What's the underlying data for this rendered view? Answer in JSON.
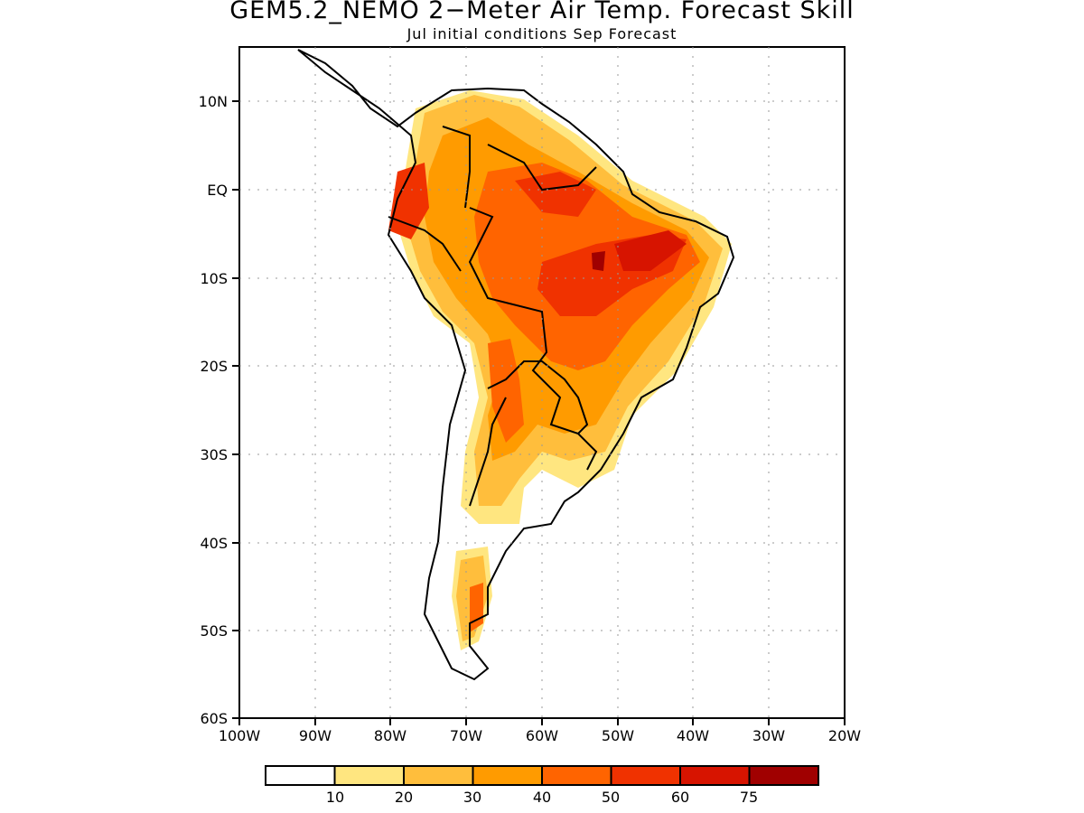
{
  "title": "GEM5.2_NEMO 2−Meter Air Temp. Forecast Skill",
  "subtitle": "Jul initial conditions  Sep Forecast",
  "lat_labels": [
    "10N",
    "EQ",
    "10S",
    "20S",
    "30S",
    "40S",
    "50S",
    "60S"
  ],
  "lon_labels": [
    "100W",
    "90W",
    "80W",
    "70W",
    "60W",
    "50W",
    "40W",
    "30W",
    "20W"
  ],
  "colorbar": {
    "labels": [
      "10",
      "20",
      "30",
      "40",
      "50",
      "60",
      "75"
    ],
    "colors": [
      "#ffffff",
      "#ffe680",
      "#ffbe3c",
      "#ff9b00",
      "#ff6400",
      "#f03200",
      "#d71400",
      "#a00000"
    ]
  },
  "map": {
    "lon_range": [
      -100,
      -20
    ],
    "lat_range": [
      -60,
      15
    ],
    "gridlines": "dotted",
    "shaded_quantity": "forecast skill (%)"
  }
}
